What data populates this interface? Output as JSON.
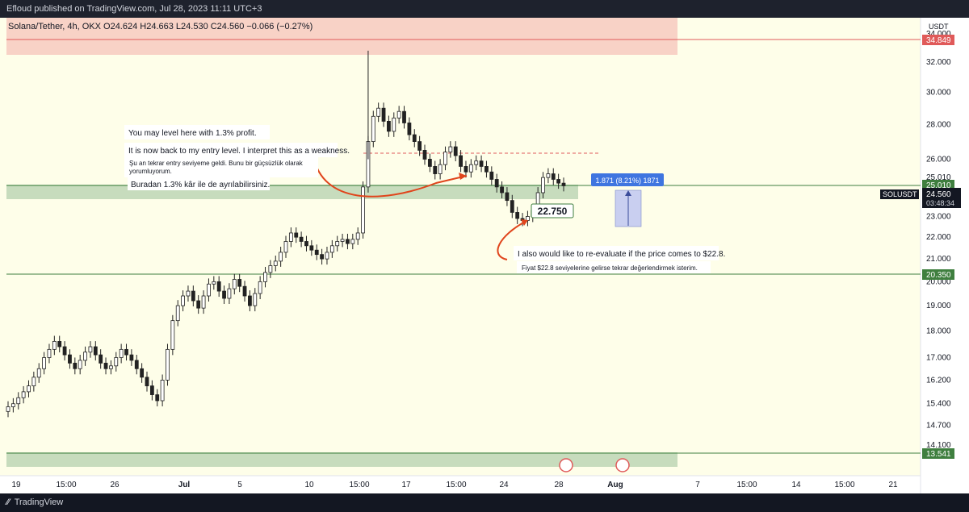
{
  "header": {
    "published_line": "Efloud published on TradingView.com, Jul 28, 2023 11:11 UTC+3"
  },
  "symbol_bar": {
    "text": "Solana/Tether, 4h, OKX  O24.624  H24.663  L24.530  C24.560  −0.066 (−0.27%)"
  },
  "footer": {
    "brand": "TradingView"
  },
  "colors": {
    "background": "#fefee9",
    "zone_red": "#f8d2c6",
    "zone_green": "#c7dcbd",
    "line_green": "#3f7f3f",
    "line_red": "#e05a5a",
    "candle": "#222222",
    "annotation_arrow": "#e0451c",
    "measure_blue": "#3f75e0"
  },
  "price_axis": {
    "currency": "USDT",
    "ticks": [
      "34.000",
      "32.000",
      "30.000",
      "28.000",
      "26.000",
      "25.010",
      "23.000",
      "22.000",
      "21.000",
      "20.000",
      "19.000",
      "18.000",
      "17.000",
      "16.200",
      "15.400",
      "14.700",
      "14.100"
    ],
    "labels": {
      "top_red": "34.849",
      "resistance": "25.010",
      "current_symbol": "SOLUSDT",
      "current_price": "24.560",
      "countdown": "03:48:34",
      "support": "20.350",
      "bottom": "13.541"
    }
  },
  "time_axis": {
    "ticks": [
      "19",
      "15:00",
      "26",
      "Jul",
      "5",
      "10",
      "15:00",
      "17",
      "15:00",
      "24",
      "28",
      "Aug",
      "7",
      "15:00",
      "14",
      "15:00",
      "21"
    ]
  },
  "annotations": {
    "note1": "You may level here with 1.3% profit.",
    "note2": "It is now back to my entry level. I interpret this as a weakness.",
    "note3": "Şu an tekrar entry seviyeme geldi. Bunu bir güçsüzlük olarak yorumluyorum.",
    "note4": "Buradan 1.3% kâr ile de ayrılabilirsiniz.",
    "price_callout": "22.750",
    "reeval_en": "I also would like to re-evaluate if the price comes to $22.8.",
    "reeval_tr": "Fiyat $22.8 seviyelerine gelirse tekrar değerlendirmek isterim.",
    "measure": "1.871 (8.21%) 1871"
  },
  "chart_data": {
    "type": "candlestick",
    "title": "Solana/Tether, 4h, OKX",
    "y_unit": "USDT",
    "ylim": [
      13.2,
      35.2
    ],
    "y_scale": "log",
    "levels": [
      {
        "name": "resistance",
        "value": 25.01
      },
      {
        "name": "support",
        "value": 20.35
      },
      {
        "name": "top",
        "value": 34.849
      },
      {
        "name": "bottom",
        "value": 13.541
      }
    ],
    "current_price": 24.56,
    "series_close": [
      15.3,
      15.4,
      15.6,
      15.8,
      16.0,
      16.3,
      16.6,
      17.0,
      17.3,
      17.6,
      17.4,
      17.1,
      16.8,
      16.6,
      16.9,
      17.2,
      17.4,
      17.1,
      16.8,
      16.6,
      16.7,
      17.0,
      17.3,
      17.1,
      16.9,
      16.6,
      16.3,
      16.0,
      15.7,
      15.5,
      16.2,
      17.3,
      18.4,
      19.0,
      19.4,
      19.6,
      19.2,
      18.9,
      19.4,
      19.9,
      20.0,
      19.6,
      19.3,
      19.7,
      20.1,
      19.8,
      19.4,
      19.0,
      19.5,
      20.0,
      20.4,
      20.7,
      20.9,
      21.3,
      21.8,
      22.2,
      22.0,
      21.8,
      21.6,
      21.4,
      21.2,
      21.0,
      21.3,
      21.6,
      21.8,
      21.9,
      21.7,
      21.9,
      22.2,
      24.5,
      27.0,
      28.5,
      29.0,
      28.2,
      27.6,
      28.4,
      28.8,
      28.1,
      27.4,
      27.0,
      26.5,
      26.0,
      25.6,
      25.2,
      25.7,
      26.4,
      26.7,
      26.2,
      25.6,
      25.3,
      25.7,
      25.9,
      25.6,
      25.3,
      24.9,
      24.5,
      24.2,
      23.8,
      23.2,
      22.9,
      22.8,
      23.0,
      23.3,
      24.2,
      25.0,
      25.2,
      24.9,
      24.7,
      24.56
    ]
  }
}
